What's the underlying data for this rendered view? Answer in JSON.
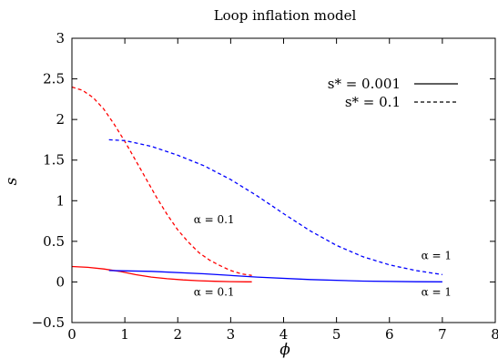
{
  "chart_data": {
    "type": "line",
    "title": "Loop inflation model",
    "xlabel": "ϕ",
    "ylabel": "s",
    "xlim": [
      0,
      8
    ],
    "ylim": [
      -0.5,
      3
    ],
    "xticks": [
      "0",
      "1",
      "2",
      "3",
      "4",
      "5",
      "6",
      "7",
      "8"
    ],
    "yticks": [
      "−0.5",
      "0",
      "0.5",
      "1",
      "1.5",
      "2",
      "2.5",
      "3"
    ],
    "xtick_values": [
      0,
      1,
      2,
      3,
      4,
      5,
      6,
      7,
      8
    ],
    "ytick_values": [
      -0.5,
      0,
      0.5,
      1,
      1.5,
      2,
      2.5,
      3
    ],
    "grid": false,
    "legend_position": "top-right",
    "legend": [
      {
        "label": "s* = 0.001",
        "style": "solid"
      },
      {
        "label": "s* = 0.1",
        "style": "dashed"
      }
    ],
    "series": [
      {
        "color": "#ff0000",
        "style": "solid",
        "x": [
          0,
          0.3,
          0.6,
          0.9,
          1.2,
          1.5,
          1.8,
          2.1,
          2.4,
          2.7,
          3.0,
          3.3,
          3.4
        ],
        "y": [
          0.19,
          0.18,
          0.16,
          0.13,
          0.09,
          0.06,
          0.04,
          0.025,
          0.015,
          0.008,
          0.004,
          0.002,
          0.002
        ]
      },
      {
        "color": "#ff0000",
        "style": "dashed",
        "x": [
          0,
          0.2,
          0.4,
          0.6,
          0.8,
          1.0,
          1.2,
          1.4,
          1.6,
          1.8,
          2.0,
          2.2,
          2.4,
          2.6,
          2.8,
          3.0,
          3.2,
          3.4
        ],
        "y": [
          2.4,
          2.36,
          2.27,
          2.13,
          1.94,
          1.73,
          1.5,
          1.27,
          1.04,
          0.83,
          0.64,
          0.49,
          0.36,
          0.27,
          0.2,
          0.14,
          0.1,
          0.08
        ]
      },
      {
        "color": "#0000ff",
        "style": "solid",
        "x": [
          0.7,
          1.5,
          2.5,
          3.5,
          4.5,
          5.5,
          6.5,
          7.0
        ],
        "y": [
          0.14,
          0.13,
          0.1,
          0.06,
          0.03,
          0.01,
          0.003,
          0.002
        ]
      },
      {
        "color": "#0000ff",
        "style": "dashed",
        "x": [
          0.7,
          1.0,
          1.5,
          2.0,
          2.5,
          3.0,
          3.5,
          4.0,
          4.5,
          5.0,
          5.5,
          6.0,
          6.5,
          7.0
        ],
        "y": [
          1.75,
          1.74,
          1.67,
          1.56,
          1.43,
          1.26,
          1.06,
          0.84,
          0.63,
          0.45,
          0.31,
          0.21,
          0.14,
          0.09
        ]
      }
    ],
    "annotations": [
      {
        "text": "α = 0.1",
        "x": 2.3,
        "y": 0.72
      },
      {
        "text": "α = 0.1",
        "x": 2.3,
        "y": -0.17
      },
      {
        "text": "α = 1",
        "x": 6.6,
        "y": 0.28
      },
      {
        "text": "α = 1",
        "x": 6.6,
        "y": -0.17
      }
    ]
  }
}
